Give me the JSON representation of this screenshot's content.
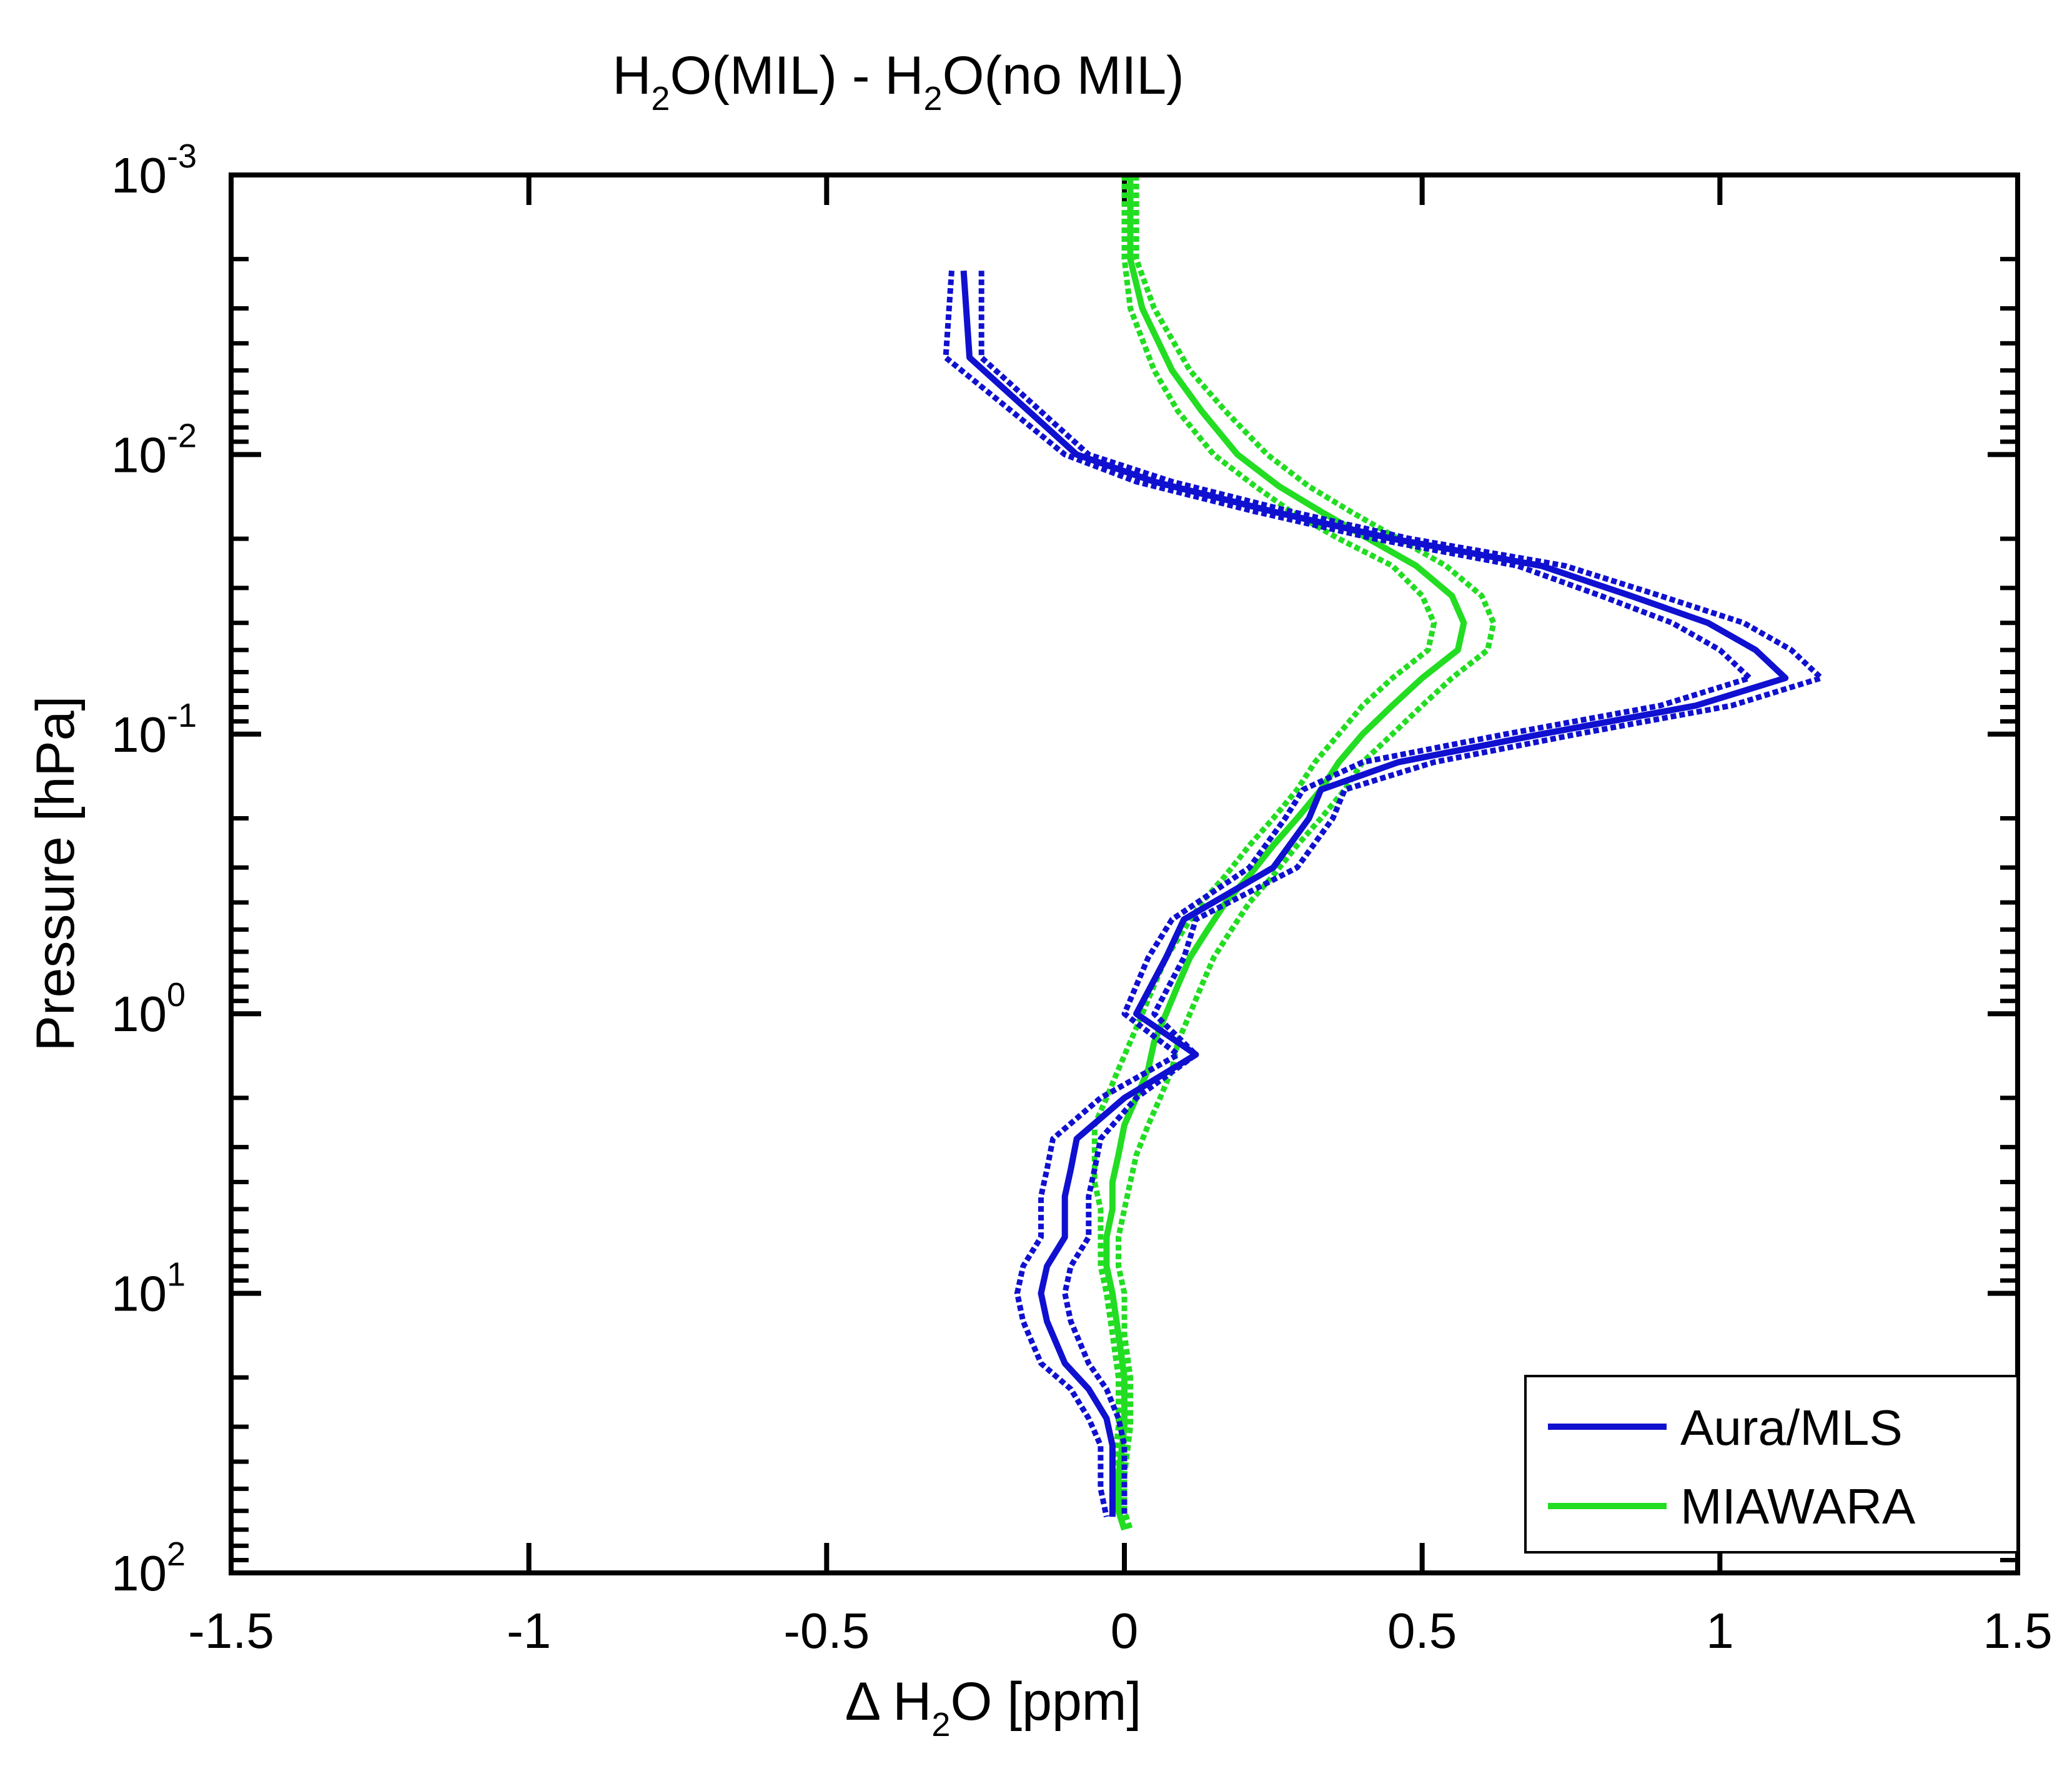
{
  "chart_data": {
    "type": "line",
    "title": {
      "prefix": "H",
      "sub1": "2",
      "mid": "O(MIL) - H",
      "sub2": "2",
      "suffix": "O(no MIL)"
    },
    "xlabel": {
      "prefix": "Δ H",
      "sub": "2",
      "suffix": "O [ppm]"
    },
    "ylabel": "Pressure [hPa]",
    "xlim": [
      -1.5,
      1.5
    ],
    "ylim": [
      0.001,
      100
    ],
    "yscale": "log",
    "y_reversed": true,
    "x_ticks": [
      -1.5,
      -1,
      -0.5,
      0,
      0.5,
      1,
      1.5
    ],
    "x_tick_labels": [
      "-1.5",
      "-1",
      "-0.5",
      "0",
      "0.5",
      "1",
      "1.5"
    ],
    "y_tick_labels": [
      {
        "base": "10",
        "exp": "-3",
        "value": 0.001
      },
      {
        "base": "10",
        "exp": "-2",
        "value": 0.01
      },
      {
        "base": "10",
        "exp": "-1",
        "value": 0.1
      },
      {
        "base": "10",
        "exp": "0",
        "value": 1
      },
      {
        "base": "10",
        "exp": "1",
        "value": 10
      },
      {
        "base": "10",
        "exp": "2",
        "value": 100
      }
    ],
    "legend_position": "bottom-right",
    "series": [
      {
        "name": "Aura/MLS",
        "color": "#1010d0",
        "style": "solid with dotted uncertainty bounds",
        "pressure": [
          0.0022,
          0.0045,
          0.01,
          0.0125,
          0.016,
          0.02,
          0.025,
          0.032,
          0.04,
          0.05,
          0.063,
          0.079,
          0.1,
          0.126,
          0.158,
          0.2,
          0.3,
          0.46,
          0.63,
          1.0,
          1.4,
          2.0,
          2.8,
          3.6,
          4.5,
          6.3,
          8.0,
          10.0,
          12.6,
          17.8,
          22.0,
          28.0,
          35.0,
          42.0,
          50.0,
          63.0
        ],
        "mean": [
          -0.27,
          -0.26,
          -0.08,
          0.05,
          0.25,
          0.45,
          0.7,
          0.85,
          0.98,
          1.06,
          1.11,
          0.96,
          0.7,
          0.46,
          0.33,
          0.31,
          0.25,
          0.1,
          0.07,
          0.02,
          0.12,
          0.0,
          -0.08,
          -0.09,
          -0.1,
          -0.1,
          -0.13,
          -0.14,
          -0.13,
          -0.1,
          -0.06,
          -0.03,
          -0.02,
          -0.02,
          -0.02,
          -0.02
        ],
        "lower": [
          -0.29,
          -0.3,
          -0.1,
          0.02,
          0.22,
          0.42,
          0.66,
          0.8,
          0.92,
          1.0,
          1.05,
          0.9,
          0.64,
          0.4,
          0.3,
          0.27,
          0.21,
          0.08,
          0.04,
          0.0,
          0.09,
          -0.04,
          -0.12,
          -0.13,
          -0.14,
          -0.14,
          -0.17,
          -0.18,
          -0.17,
          -0.14,
          -0.09,
          -0.06,
          -0.04,
          -0.04,
          -0.04,
          -0.03
        ],
        "upper": [
          -0.24,
          -0.24,
          -0.06,
          0.08,
          0.28,
          0.48,
          0.74,
          0.9,
          1.04,
          1.12,
          1.17,
          1.02,
          0.76,
          0.52,
          0.37,
          0.35,
          0.29,
          0.12,
          0.1,
          0.05,
          0.12,
          0.02,
          -0.04,
          -0.05,
          -0.06,
          -0.06,
          -0.09,
          -0.1,
          -0.09,
          -0.06,
          -0.03,
          -0.01,
          0.0,
          0.0,
          0.0,
          0.0
        ]
      },
      {
        "name": "MIAWARA",
        "color": "#22dd22",
        "style": "solid with dotted uncertainty bounds",
        "pressure": [
          0.001,
          0.002,
          0.003,
          0.005,
          0.007,
          0.01,
          0.013,
          0.016,
          0.02,
          0.025,
          0.032,
          0.04,
          0.05,
          0.063,
          0.079,
          0.1,
          0.126,
          0.158,
          0.2,
          0.25,
          0.32,
          0.4,
          0.5,
          0.63,
          0.79,
          1.0,
          1.26,
          1.58,
          2.0,
          2.5,
          3.2,
          4.0,
          5.0,
          6.3,
          8.0,
          10.0,
          14.0,
          20.0,
          30.0,
          45.0,
          60.0,
          70.0
        ],
        "mean": [
          0.01,
          0.01,
          0.03,
          0.08,
          0.13,
          0.19,
          0.26,
          0.33,
          0.41,
          0.49,
          0.55,
          0.57,
          0.56,
          0.5,
          0.45,
          0.4,
          0.36,
          0.33,
          0.29,
          0.25,
          0.21,
          0.17,
          0.14,
          0.11,
          0.09,
          0.07,
          0.05,
          0.04,
          0.02,
          0.0,
          -0.01,
          -0.02,
          -0.02,
          -0.03,
          -0.03,
          -0.02,
          -0.01,
          0.0,
          0.0,
          -0.01,
          -0.01,
          0.0
        ],
        "lower": [
          0.0,
          0.0,
          0.01,
          0.05,
          0.09,
          0.15,
          0.22,
          0.28,
          0.36,
          0.45,
          0.5,
          0.52,
          0.51,
          0.45,
          0.4,
          0.36,
          0.32,
          0.29,
          0.25,
          0.21,
          0.17,
          0.13,
          0.1,
          0.07,
          0.05,
          0.03,
          0.01,
          -0.01,
          -0.03,
          -0.05,
          -0.05,
          -0.05,
          -0.04,
          -0.04,
          -0.04,
          -0.03,
          -0.02,
          -0.01,
          -0.01,
          -0.02,
          -0.01,
          0.0
        ],
        "upper": [
          0.02,
          0.02,
          0.05,
          0.11,
          0.17,
          0.24,
          0.31,
          0.38,
          0.46,
          0.54,
          0.6,
          0.62,
          0.61,
          0.55,
          0.5,
          0.45,
          0.4,
          0.37,
          0.33,
          0.29,
          0.25,
          0.21,
          0.18,
          0.15,
          0.13,
          0.11,
          0.09,
          0.08,
          0.06,
          0.04,
          0.02,
          0.01,
          0.0,
          -0.01,
          -0.01,
          0.0,
          0.0,
          0.01,
          0.01,
          0.0,
          0.0,
          0.01
        ]
      }
    ]
  }
}
